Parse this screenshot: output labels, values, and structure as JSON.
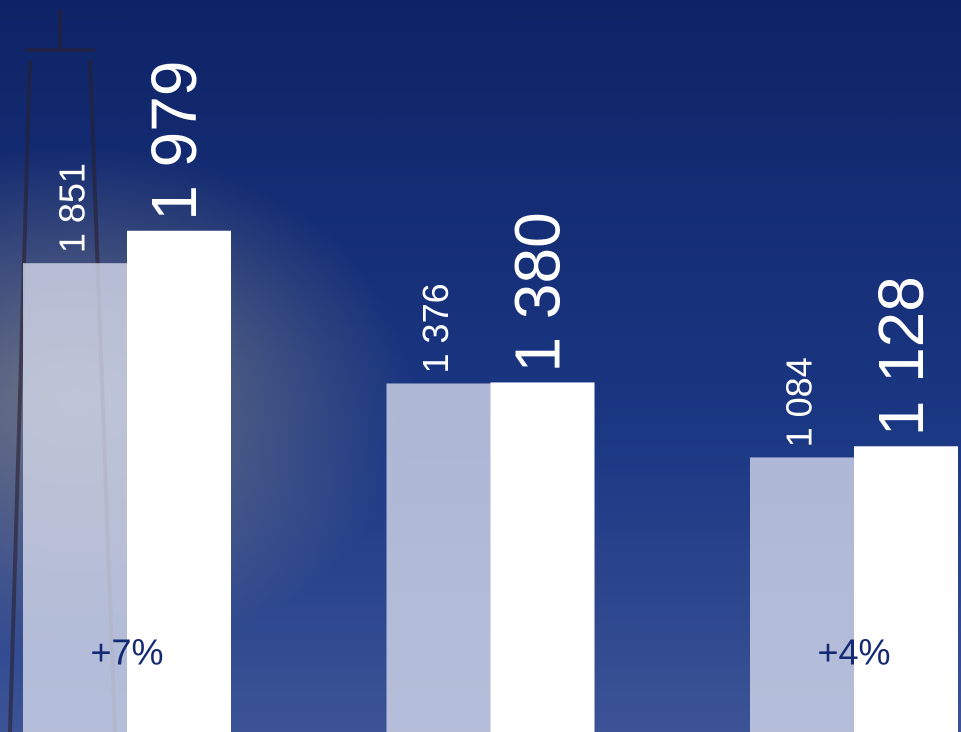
{
  "chart_data": {
    "type": "bar",
    "categories": [
      null,
      null,
      null
    ],
    "series": [
      {
        "color": "#d3d8ea",
        "values": [
          1851,
          1376,
          1084
        ],
        "value_labels": [
          "1 851",
          "1 376",
          "1 084"
        ]
      },
      {
        "color": "#ffffff",
        "values": [
          1979,
          1380,
          1128
        ],
        "value_labels": [
          "1 979",
          "1 380",
          "1 128"
        ]
      }
    ],
    "annotations": [
      "+7%",
      null,
      "+4%"
    ],
    "ylim": [
      0,
      2890
    ]
  }
}
